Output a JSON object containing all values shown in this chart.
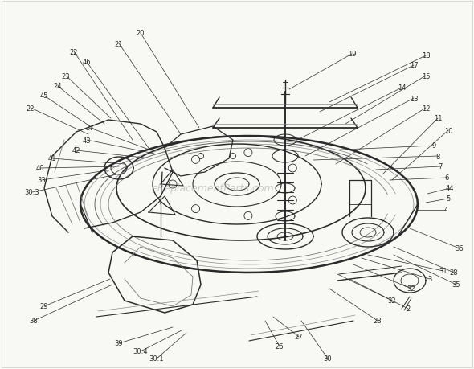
{
  "bg_color": "#f5f5f0",
  "fig_width": 5.9,
  "fig_height": 4.6,
  "dpi": 100,
  "watermark": "eReplacementParts.com",
  "line_color": "#2a2a2a",
  "light_color": "#666666"
}
